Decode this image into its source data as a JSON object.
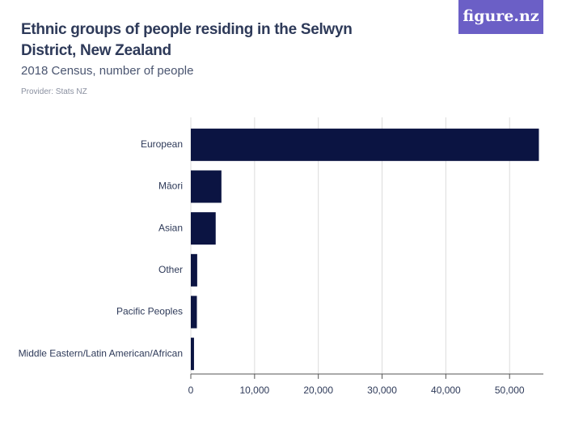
{
  "logo": "figure.nz",
  "chart_data": {
    "type": "bar",
    "title": "Ethnic groups of people residing in the Selwyn District, New Zealand",
    "subtitle": "2018 Census, number of people",
    "provider": "Provider: Stats NZ",
    "categories": [
      "European",
      "Māori",
      "Asian",
      "Other",
      "Pacific Peoples",
      "Middle Eastern/Latin American/African"
    ],
    "values": [
      54600,
      4800,
      3900,
      1000,
      950,
      500
    ],
    "color": "#0b1442",
    "orientation": "horizontal",
    "xlim": [
      0,
      55300
    ],
    "xticks": [
      0,
      {
        "value": 10000,
        "label": "10,000"
      },
      {
        "value": 20000,
        "label": "20,000"
      },
      {
        "value": 30000,
        "label": "30,000"
      },
      {
        "value": 40000,
        "label": "40,000"
      },
      {
        "value": 50000,
        "label": "50,000"
      }
    ],
    "grid": true
  }
}
